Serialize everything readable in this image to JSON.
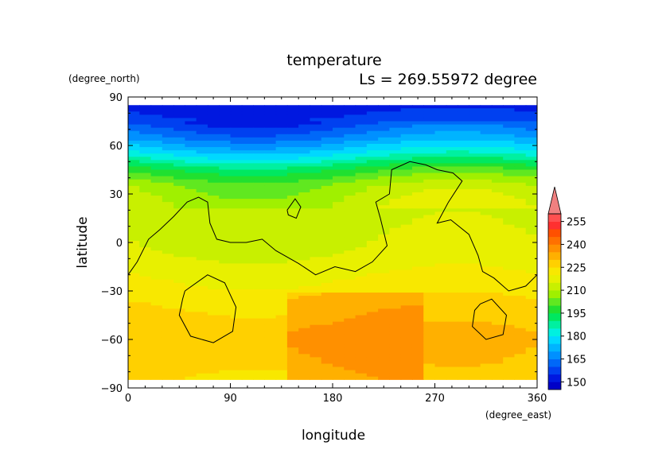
{
  "chart_data": {
    "type": "heatmap",
    "title": "temperature",
    "subtitle": "Ls = 269.55972 degree",
    "xlabel": "longitude",
    "ylabel": "latitude",
    "x_units": "(degree_east)",
    "y_units": "(degree_north)",
    "xlim": [
      0,
      360
    ],
    "ylim": [
      -90,
      90
    ],
    "x_ticks": [
      0,
      90,
      180,
      270,
      360
    ],
    "x_tick_labels": [
      "0",
      "90",
      "180",
      "270",
      "360"
    ],
    "y_ticks": [
      90,
      60,
      30,
      0,
      -30,
      -60,
      -90
    ],
    "y_tick_labels": [
      "90",
      "60",
      "30",
      "0",
      "−30",
      "−60",
      "−90"
    ],
    "data_lat_range": [
      -85,
      85
    ],
    "colorbar": {
      "levels": [
        145,
        150,
        155,
        160,
        165,
        170,
        175,
        180,
        185,
        190,
        195,
        200,
        205,
        210,
        215,
        220,
        225,
        230,
        235,
        240,
        245,
        250,
        255,
        260
      ],
      "colors": [
        "#0000c8",
        "#0018e0",
        "#0040f0",
        "#0068f8",
        "#0090ff",
        "#00b4ff",
        "#00d8ff",
        "#00f0e0",
        "#00f0a0",
        "#00e860",
        "#20e030",
        "#60e820",
        "#a0f000",
        "#c8f000",
        "#e8f000",
        "#f8e800",
        "#ffd000",
        "#ffb000",
        "#ff9000",
        "#ff7000",
        "#ff5000",
        "#ff3030",
        "#ff5050"
      ],
      "labels": [
        "150",
        "165",
        "180",
        "195",
        "210",
        "225",
        "240",
        "255"
      ],
      "overflow_color": "#f08080"
    },
    "temperature_by_latitude": {
      "lat": [
        85,
        75,
        65,
        55,
        45,
        35,
        25,
        15,
        5,
        -5,
        -15,
        -25,
        -35,
        -45,
        -55,
        -65,
        -75,
        -85
      ],
      "typical_temperature": [
        152,
        157,
        167,
        180,
        197,
        208,
        212,
        213,
        214,
        215,
        218,
        221,
        224,
        227,
        229,
        229,
        228,
        226
      ]
    }
  }
}
